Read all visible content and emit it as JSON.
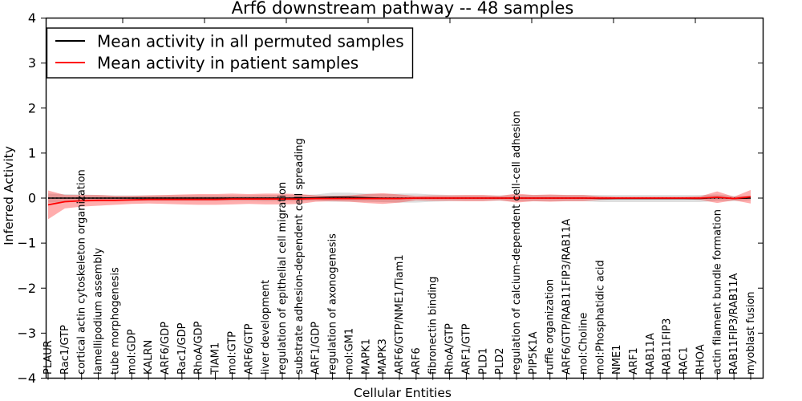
{
  "chart_data": {
    "type": "line",
    "title": "Arf6 downstream pathway -- 48 samples",
    "xlabel": "Cellular Entities",
    "ylabel": "Inferred Activity",
    "ylim": [
      -4,
      4
    ],
    "ytick_labels": [
      "4",
      "3",
      "2",
      "1",
      "0",
      "−1",
      "−2",
      "−3",
      "−4"
    ],
    "grid": false,
    "legend_position": "upper left",
    "zero_line": {
      "style": "dotted",
      "color": "#000000",
      "value": 0
    },
    "categories": [
      "PLAUR",
      "Rac1/GTP",
      "cortical actin cytoskeleton organization",
      "lamellipodium assembly",
      "tube morphogenesis",
      "mol:GDP",
      "KALRN",
      "ARF6/GDP",
      "Rac1/GDP",
      "RhoA/GDP",
      "TIAM1",
      "mol:GTP",
      "ARF6/GTP",
      "liver development",
      "regulation of epithelial cell migration",
      "substrate adhesion-dependent cell spreading",
      "ARF1/GDP",
      "regulation of axonogenesis",
      "mol:GM1",
      "MAPK1",
      "MAPK3",
      "ARF6/GTP/NME1/Tiam1",
      "ARF6",
      "fibronectin binding",
      "RhoA/GTP",
      "ARF1/GTP",
      "PLD1",
      "PLD2",
      "regulation of calcium-dependent cell-cell adhesion",
      "PIP5K1A",
      "ruffle organization",
      "ARF6/GTP/RAB11FIP3/RAB11A",
      "mol:Choline",
      "mol:Phosphatidic acid",
      "NME1",
      "ARF1",
      "RAB11A",
      "RAB11FIP3",
      "RAC1",
      "RHOA",
      "actin filament bundle formation",
      "RAB11FIP3/RAB11A",
      "myoblast fusion"
    ],
    "series": [
      {
        "name": "Mean activity in all permuted samples",
        "color": "#000000",
        "band_color": "rgba(0,0,0,0.13)",
        "mean": [
          0,
          0,
          0,
          0,
          0,
          0,
          0,
          0,
          0,
          0,
          0,
          0,
          0,
          0,
          0,
          0,
          0.01,
          0.02,
          0.02,
          0.01,
          0,
          0,
          0,
          0,
          0,
          0,
          0,
          0,
          0,
          0,
          0,
          0,
          0,
          -0.01,
          -0.01,
          -0.01,
          -0.01,
          -0.01,
          -0.01,
          -0.01,
          0.01,
          -0.01,
          0
        ],
        "band_half_width": [
          0.1,
          0.09,
          0.08,
          0.07,
          0.06,
          0.06,
          0.06,
          0.06,
          0.06,
          0.06,
          0.06,
          0.06,
          0.06,
          0.07,
          0.07,
          0.07,
          0.07,
          0.1,
          0.1,
          0.09,
          0.09,
          0.1,
          0.1,
          0.08,
          0.07,
          0.06,
          0.06,
          0.06,
          0.07,
          0.07,
          0.07,
          0.07,
          0.07,
          0.08,
          0.08,
          0.08,
          0.08,
          0.08,
          0.08,
          0.08,
          0.07,
          0.06,
          0.05
        ]
      },
      {
        "name": "Mean activity in patient samples",
        "color": "#ff0000",
        "band_color": "rgba(255,0,0,0.32)",
        "mean": [
          -0.15,
          -0.08,
          -0.06,
          -0.05,
          -0.05,
          -0.04,
          -0.03,
          -0.03,
          -0.03,
          -0.03,
          -0.03,
          -0.02,
          -0.02,
          -0.02,
          -0.02,
          -0.02,
          -0.01,
          -0.01,
          -0.01,
          -0.01,
          -0.01,
          -0.01,
          0,
          0,
          0,
          0,
          0,
          0,
          0,
          0,
          0,
          0,
          0,
          0,
          0,
          0,
          0,
          0,
          0,
          0,
          0.02,
          -0.01,
          0.03
        ],
        "band_half_width": [
          0.32,
          0.15,
          0.13,
          0.12,
          0.1,
          0.09,
          0.09,
          0.1,
          0.11,
          0.12,
          0.12,
          0.12,
          0.11,
          0.12,
          0.12,
          0.11,
          0.07,
          0.06,
          0.07,
          0.1,
          0.12,
          0.09,
          0.05,
          0.06,
          0.06,
          0.07,
          0.07,
          0.05,
          0.1,
          0.07,
          0.08,
          0.07,
          0.07,
          0.04,
          0.03,
          0.03,
          0.03,
          0.03,
          0.03,
          0.04,
          0.13,
          0.04,
          0.15
        ]
      }
    ],
    "legend_entries": [
      "Mean activity in all permuted samples",
      "Mean activity in patient samples"
    ]
  }
}
